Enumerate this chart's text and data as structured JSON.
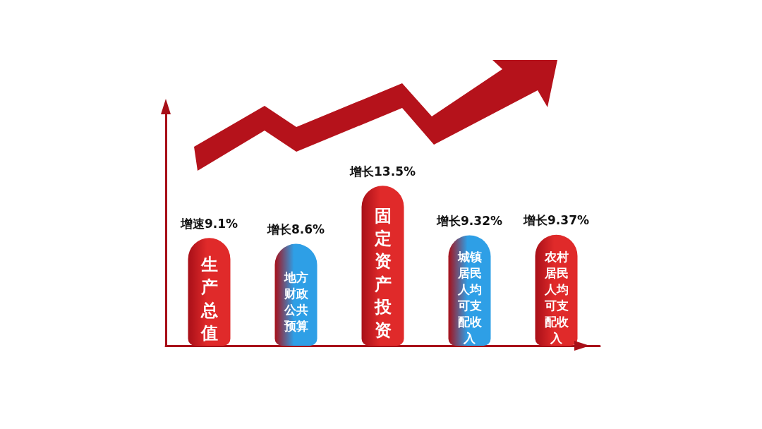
{
  "chart_data": {
    "type": "bar",
    "categories": [
      "生产总值",
      "地方财政公共预算",
      "固定资产投资",
      "城镇居民人均可支配收入",
      "农村居民人均可支配收入"
    ],
    "values": [
      9.1,
      8.6,
      13.5,
      9.32,
      9.37
    ],
    "value_labels": [
      "增速9.1%",
      "增长8.6%",
      "增长13.5%",
      "增长9.32%",
      "增长9.37%"
    ],
    "colors": [
      "#e02a2a",
      "#2e9fe6",
      "#e02a2a",
      "#2e9fe6",
      "#e02a2a"
    ],
    "tick_labels": false
  }
}
